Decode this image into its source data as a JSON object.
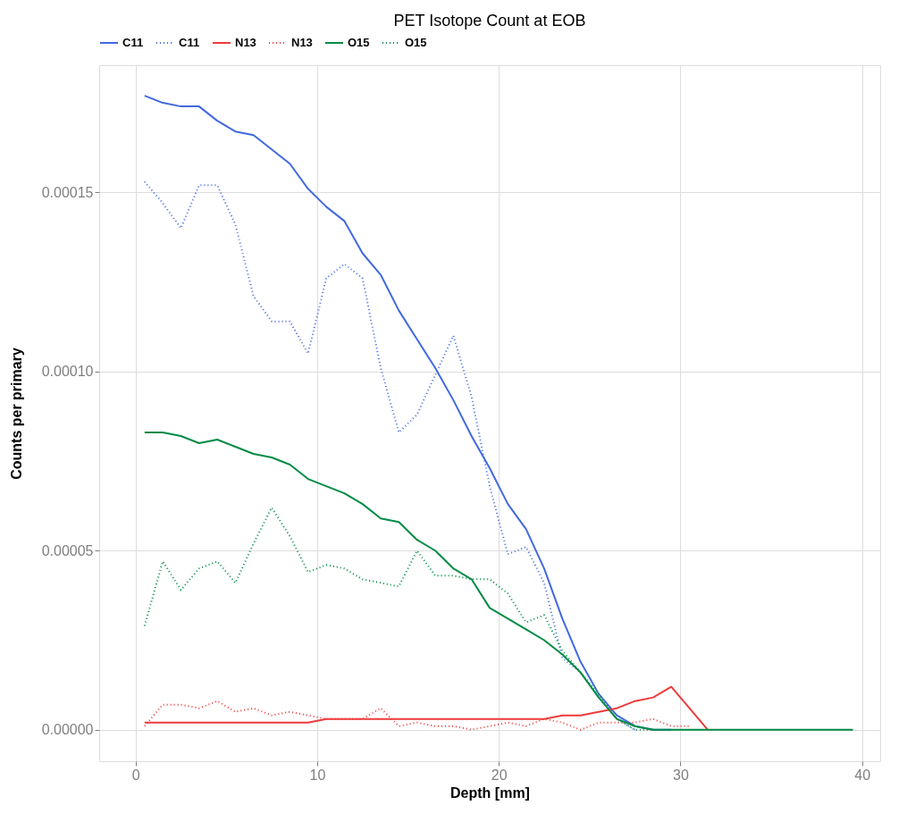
{
  "chart_data": {
    "type": "line",
    "title": "PET Isotope Count at EOB",
    "xlabel": "Depth [mm]",
    "ylabel": "Counts per primary",
    "x": [
      0.5,
      1.5,
      2.5,
      3.5,
      4.5,
      5.5,
      6.5,
      7.5,
      8.5,
      9.5,
      10.5,
      11.5,
      12.5,
      13.5,
      14.5,
      15.5,
      16.5,
      17.5,
      18.5,
      19.5,
      20.5,
      21.5,
      22.5,
      23.5,
      24.5,
      25.5,
      26.5,
      27.5,
      28.5,
      29.5,
      30.5,
      31.5,
      32.5,
      33.5,
      34.5,
      35.5,
      36.5,
      37.5,
      38.5,
      39.5
    ],
    "series": [
      {
        "name": "C11",
        "color": "#4169e1",
        "line_style": "solid",
        "values": [
          0.000177,
          0.000175,
          0.000174,
          0.000174,
          0.00017,
          0.000167,
          0.000166,
          0.000162,
          0.000158,
          0.000151,
          0.000146,
          0.000142,
          0.000133,
          0.000127,
          0.000117,
          0.000109,
          0.000101,
          9.2e-05,
          8.2e-05,
          7.3e-05,
          6.3e-05,
          5.6e-05,
          4.5e-05,
          3.1e-05,
          1.9e-05,
          1e-05,
          4e-06,
          1e-06,
          0,
          0,
          null,
          null,
          null,
          null,
          null,
          null,
          null,
          null,
          null,
          null
        ]
      },
      {
        "name": "C11",
        "color": "#4169e1",
        "line_style": "dotted",
        "values": [
          0.000153,
          0.000147,
          0.00014,
          0.000152,
          0.000152,
          0.000141,
          0.000121,
          0.000114,
          0.000114,
          0.000105,
          0.000126,
          0.00013,
          0.000126,
          0.000101,
          8.3e-05,
          8.8e-05,
          9.9e-05,
          0.00011,
          9.3e-05,
          6.8e-05,
          4.9e-05,
          5.1e-05,
          4.1e-05,
          2e-05,
          1.6e-05,
          9e-06,
          3e-06,
          0,
          null,
          null,
          null,
          null,
          null,
          null,
          null,
          null,
          null,
          null,
          null,
          null
        ]
      },
      {
        "name": "N13",
        "color": "#ee3b3b",
        "line_style": "solid",
        "values": [
          2e-06,
          2e-06,
          2e-06,
          2e-06,
          2e-06,
          2e-06,
          2e-06,
          2e-06,
          2e-06,
          2e-06,
          3e-06,
          3e-06,
          3e-06,
          3e-06,
          3e-06,
          3e-06,
          3e-06,
          3e-06,
          3e-06,
          3e-06,
          3e-06,
          3e-06,
          3e-06,
          4e-06,
          4e-06,
          5e-06,
          6e-06,
          8e-06,
          9e-06,
          1.2e-05,
          6e-06,
          0,
          null,
          null,
          null,
          null,
          null,
          null,
          null,
          null
        ]
      },
      {
        "name": "N13",
        "color": "#ee3b3b",
        "line_style": "dotted",
        "values": [
          1e-06,
          7e-06,
          7e-06,
          6e-06,
          8e-06,
          5e-06,
          6e-06,
          4e-06,
          5e-06,
          4e-06,
          3e-06,
          3e-06,
          3e-06,
          6e-06,
          1e-06,
          2e-06,
          1e-06,
          1e-06,
          0,
          1e-06,
          2e-06,
          1e-06,
          3e-06,
          2e-06,
          0,
          2e-06,
          2e-06,
          2e-06,
          3e-06,
          1e-06,
          1e-06,
          null,
          null,
          null,
          null,
          null,
          null,
          null,
          null,
          null
        ]
      },
      {
        "name": "O15",
        "color": "#008b45",
        "line_style": "solid",
        "values": [
          8.3e-05,
          8.3e-05,
          8.2e-05,
          8e-05,
          8.1e-05,
          7.9e-05,
          7.7e-05,
          7.6e-05,
          7.4e-05,
          7e-05,
          6.8e-05,
          6.6e-05,
          6.3e-05,
          5.9e-05,
          5.8e-05,
          5.3e-05,
          5e-05,
          4.5e-05,
          4.2e-05,
          3.4e-05,
          3.1e-05,
          2.8e-05,
          2.5e-05,
          2.1e-05,
          1.6e-05,
          9e-06,
          3e-06,
          1e-06,
          0,
          0,
          0,
          0,
          0,
          0,
          0,
          0,
          0,
          0,
          0,
          0
        ]
      },
      {
        "name": "O15",
        "color": "#008b45",
        "line_style": "dotted",
        "values": [
          2.9e-05,
          4.7e-05,
          3.9e-05,
          4.5e-05,
          4.7e-05,
          4.1e-05,
          5.2e-05,
          6.2e-05,
          5.4e-05,
          4.4e-05,
          4.6e-05,
          4.5e-05,
          4.2e-05,
          4.1e-05,
          4e-05,
          5e-05,
          4.3e-05,
          4.3e-05,
          4.2e-05,
          4.2e-05,
          3.8e-05,
          3e-05,
          3.2e-05,
          2.2e-05,
          1.6e-05,
          1e-05,
          3e-06,
          0,
          0,
          null,
          null,
          null,
          null,
          null,
          null,
          null,
          null,
          null,
          null,
          null
        ]
      }
    ],
    "xlim": [
      -2,
      41
    ],
    "xticks": [
      0,
      10,
      20,
      30,
      40
    ],
    "ylim": [
      -8.8e-06,
      0.0001855
    ],
    "yticks": [
      {
        "value": 0,
        "label": "0.00000"
      },
      {
        "value": 5e-05,
        "label": "0.00005"
      },
      {
        "value": 0.0001,
        "label": "0.00010"
      },
      {
        "value": 0.00015,
        "label": "0.00015"
      }
    ],
    "grid": true,
    "legend": "top",
    "marker": "none"
  }
}
